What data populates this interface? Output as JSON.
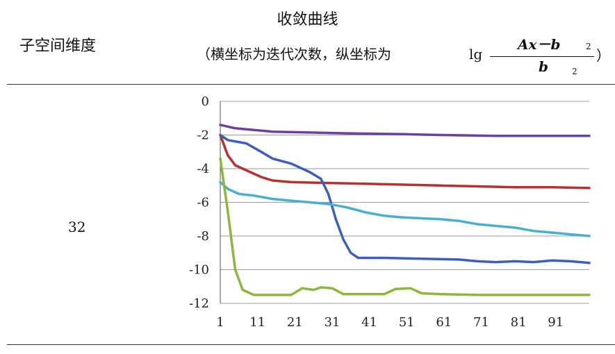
{
  "header": {
    "col1_label": "子空间维度",
    "col2_title": "收敛曲线",
    "col2_subtitle": "（横坐标为迭代次数，纵坐标为",
    "log_label": "lg",
    "numerator": "Ax－b",
    "numerator_sub": "2",
    "denominator": "b",
    "denominator_sub": "2",
    "close_paren": "）"
  },
  "row": {
    "dimension": "32"
  },
  "chart_data": {
    "type": "line",
    "title": "",
    "xlabel": "",
    "ylabel": "",
    "xlim": [
      1,
      100
    ],
    "ylim": [
      -12,
      0
    ],
    "xticks": [
      "1",
      "11",
      "21",
      "31",
      "41",
      "51",
      "61",
      "71",
      "81",
      "91"
    ],
    "yticks": [
      "0",
      "-2",
      "-4",
      "-6",
      "-8",
      "-10",
      "-12"
    ],
    "grid": "horizontal",
    "series": [
      {
        "color": "#6d3fa0",
        "points": [
          [
            1,
            -1.4
          ],
          [
            5,
            -1.6
          ],
          [
            10,
            -1.7
          ],
          [
            15,
            -1.8
          ],
          [
            25,
            -1.85
          ],
          [
            35,
            -1.9
          ],
          [
            50,
            -1.95
          ],
          [
            60,
            -2.0
          ],
          [
            75,
            -2.05
          ],
          [
            90,
            -2.05
          ],
          [
            100,
            -2.05
          ]
        ]
      },
      {
        "color": "#b83030",
        "points": [
          [
            1,
            -2.0
          ],
          [
            3,
            -3.2
          ],
          [
            5,
            -3.8
          ],
          [
            8,
            -4.1
          ],
          [
            12,
            -4.5
          ],
          [
            15,
            -4.7
          ],
          [
            20,
            -4.8
          ],
          [
            30,
            -4.85
          ],
          [
            40,
            -4.9
          ],
          [
            50,
            -4.95
          ],
          [
            60,
            -5.0
          ],
          [
            70,
            -5.05
          ],
          [
            80,
            -5.1
          ],
          [
            90,
            -5.1
          ],
          [
            100,
            -5.15
          ]
        ]
      },
      {
        "color": "#3a5fc0",
        "points": [
          [
            1,
            -2.0
          ],
          [
            3,
            -2.3
          ],
          [
            8,
            -2.5
          ],
          [
            12,
            -3.0
          ],
          [
            15,
            -3.4
          ],
          [
            20,
            -3.7
          ],
          [
            25,
            -4.2
          ],
          [
            28,
            -4.6
          ],
          [
            30,
            -5.5
          ],
          [
            32,
            -7.0
          ],
          [
            34,
            -8.2
          ],
          [
            36,
            -9.0
          ],
          [
            38,
            -9.3
          ],
          [
            45,
            -9.3
          ],
          [
            55,
            -9.35
          ],
          [
            65,
            -9.4
          ],
          [
            70,
            -9.5
          ],
          [
            75,
            -9.55
          ],
          [
            80,
            -9.5
          ],
          [
            85,
            -9.55
          ],
          [
            90,
            -9.45
          ],
          [
            95,
            -9.5
          ],
          [
            100,
            -9.6
          ]
        ]
      },
      {
        "color": "#4aaed0",
        "points": [
          [
            1,
            -4.8
          ],
          [
            3,
            -5.2
          ],
          [
            6,
            -5.5
          ],
          [
            10,
            -5.6
          ],
          [
            15,
            -5.8
          ],
          [
            20,
            -5.9
          ],
          [
            25,
            -6.0
          ],
          [
            30,
            -6.1
          ],
          [
            35,
            -6.3
          ],
          [
            40,
            -6.6
          ],
          [
            45,
            -6.8
          ],
          [
            50,
            -6.9
          ],
          [
            55,
            -6.95
          ],
          [
            60,
            -7.0
          ],
          [
            65,
            -7.1
          ],
          [
            70,
            -7.3
          ],
          [
            75,
            -7.4
          ],
          [
            80,
            -7.5
          ],
          [
            85,
            -7.7
          ],
          [
            90,
            -7.8
          ],
          [
            95,
            -7.9
          ],
          [
            100,
            -8.0
          ]
        ]
      },
      {
        "color": "#8ab83a",
        "points": [
          [
            1,
            -3.4
          ],
          [
            3,
            -6.5
          ],
          [
            5,
            -10.0
          ],
          [
            7,
            -11.2
          ],
          [
            10,
            -11.5
          ],
          [
            15,
            -11.5
          ],
          [
            20,
            -11.5
          ],
          [
            23,
            -11.1
          ],
          [
            26,
            -11.2
          ],
          [
            28,
            -11.05
          ],
          [
            31,
            -11.1
          ],
          [
            34,
            -11.45
          ],
          [
            40,
            -11.45
          ],
          [
            45,
            -11.45
          ],
          [
            48,
            -11.15
          ],
          [
            52,
            -11.1
          ],
          [
            55,
            -11.4
          ],
          [
            60,
            -11.45
          ],
          [
            70,
            -11.5
          ],
          [
            80,
            -11.5
          ],
          [
            90,
            -11.5
          ],
          [
            100,
            -11.5
          ]
        ]
      }
    ]
  }
}
